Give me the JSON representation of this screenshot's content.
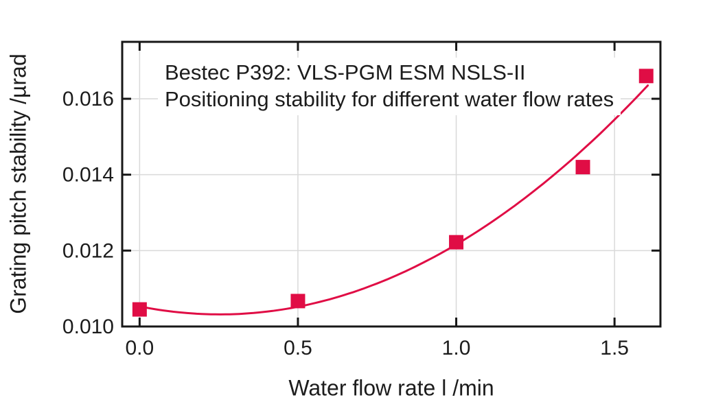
{
  "chart_data": {
    "type": "scatter",
    "annotation": {
      "line1": "Bestec P392: VLS-PGM ESM NSLS-II",
      "line2": "Positioning stability for different water flow rates"
    },
    "xlabel": "Water flow rate l /min",
    "ylabel": "Grating pitch stability /µrad",
    "points": [
      {
        "x": 0.0,
        "y": 0.01045
      },
      {
        "x": 0.5,
        "y": 0.01067
      },
      {
        "x": 1.0,
        "y": 0.01222
      },
      {
        "x": 1.4,
        "y": 0.0142
      },
      {
        "x": 1.6,
        "y": 0.0166
      }
    ],
    "fit_curve": {
      "type": "quadratic",
      "a": 0.0033,
      "b": -0.00167,
      "c": 0.01053,
      "x_start": 0.0,
      "x_end": 1.605
    },
    "xlim": [
      -0.055,
      1.645
    ],
    "ylim": [
      0.01,
      0.0175
    ],
    "x_ticks": {
      "values": [
        0.0,
        0.5,
        1.0,
        1.5
      ],
      "labels": [
        "0.0",
        "0.5",
        "1.0",
        "1.5"
      ]
    },
    "y_ticks": {
      "values": [
        0.01,
        0.012,
        0.014,
        0.016
      ],
      "labels": [
        "0.010",
        "0.012",
        "0.014",
        "0.016"
      ]
    },
    "grid": true,
    "legend": "none",
    "marker": "filled-square",
    "colors": {
      "series": "#e00d45",
      "axes": "#171717",
      "grid": "#d9d9d9",
      "background": "#ffffff",
      "text": "#1c1c1c"
    }
  }
}
